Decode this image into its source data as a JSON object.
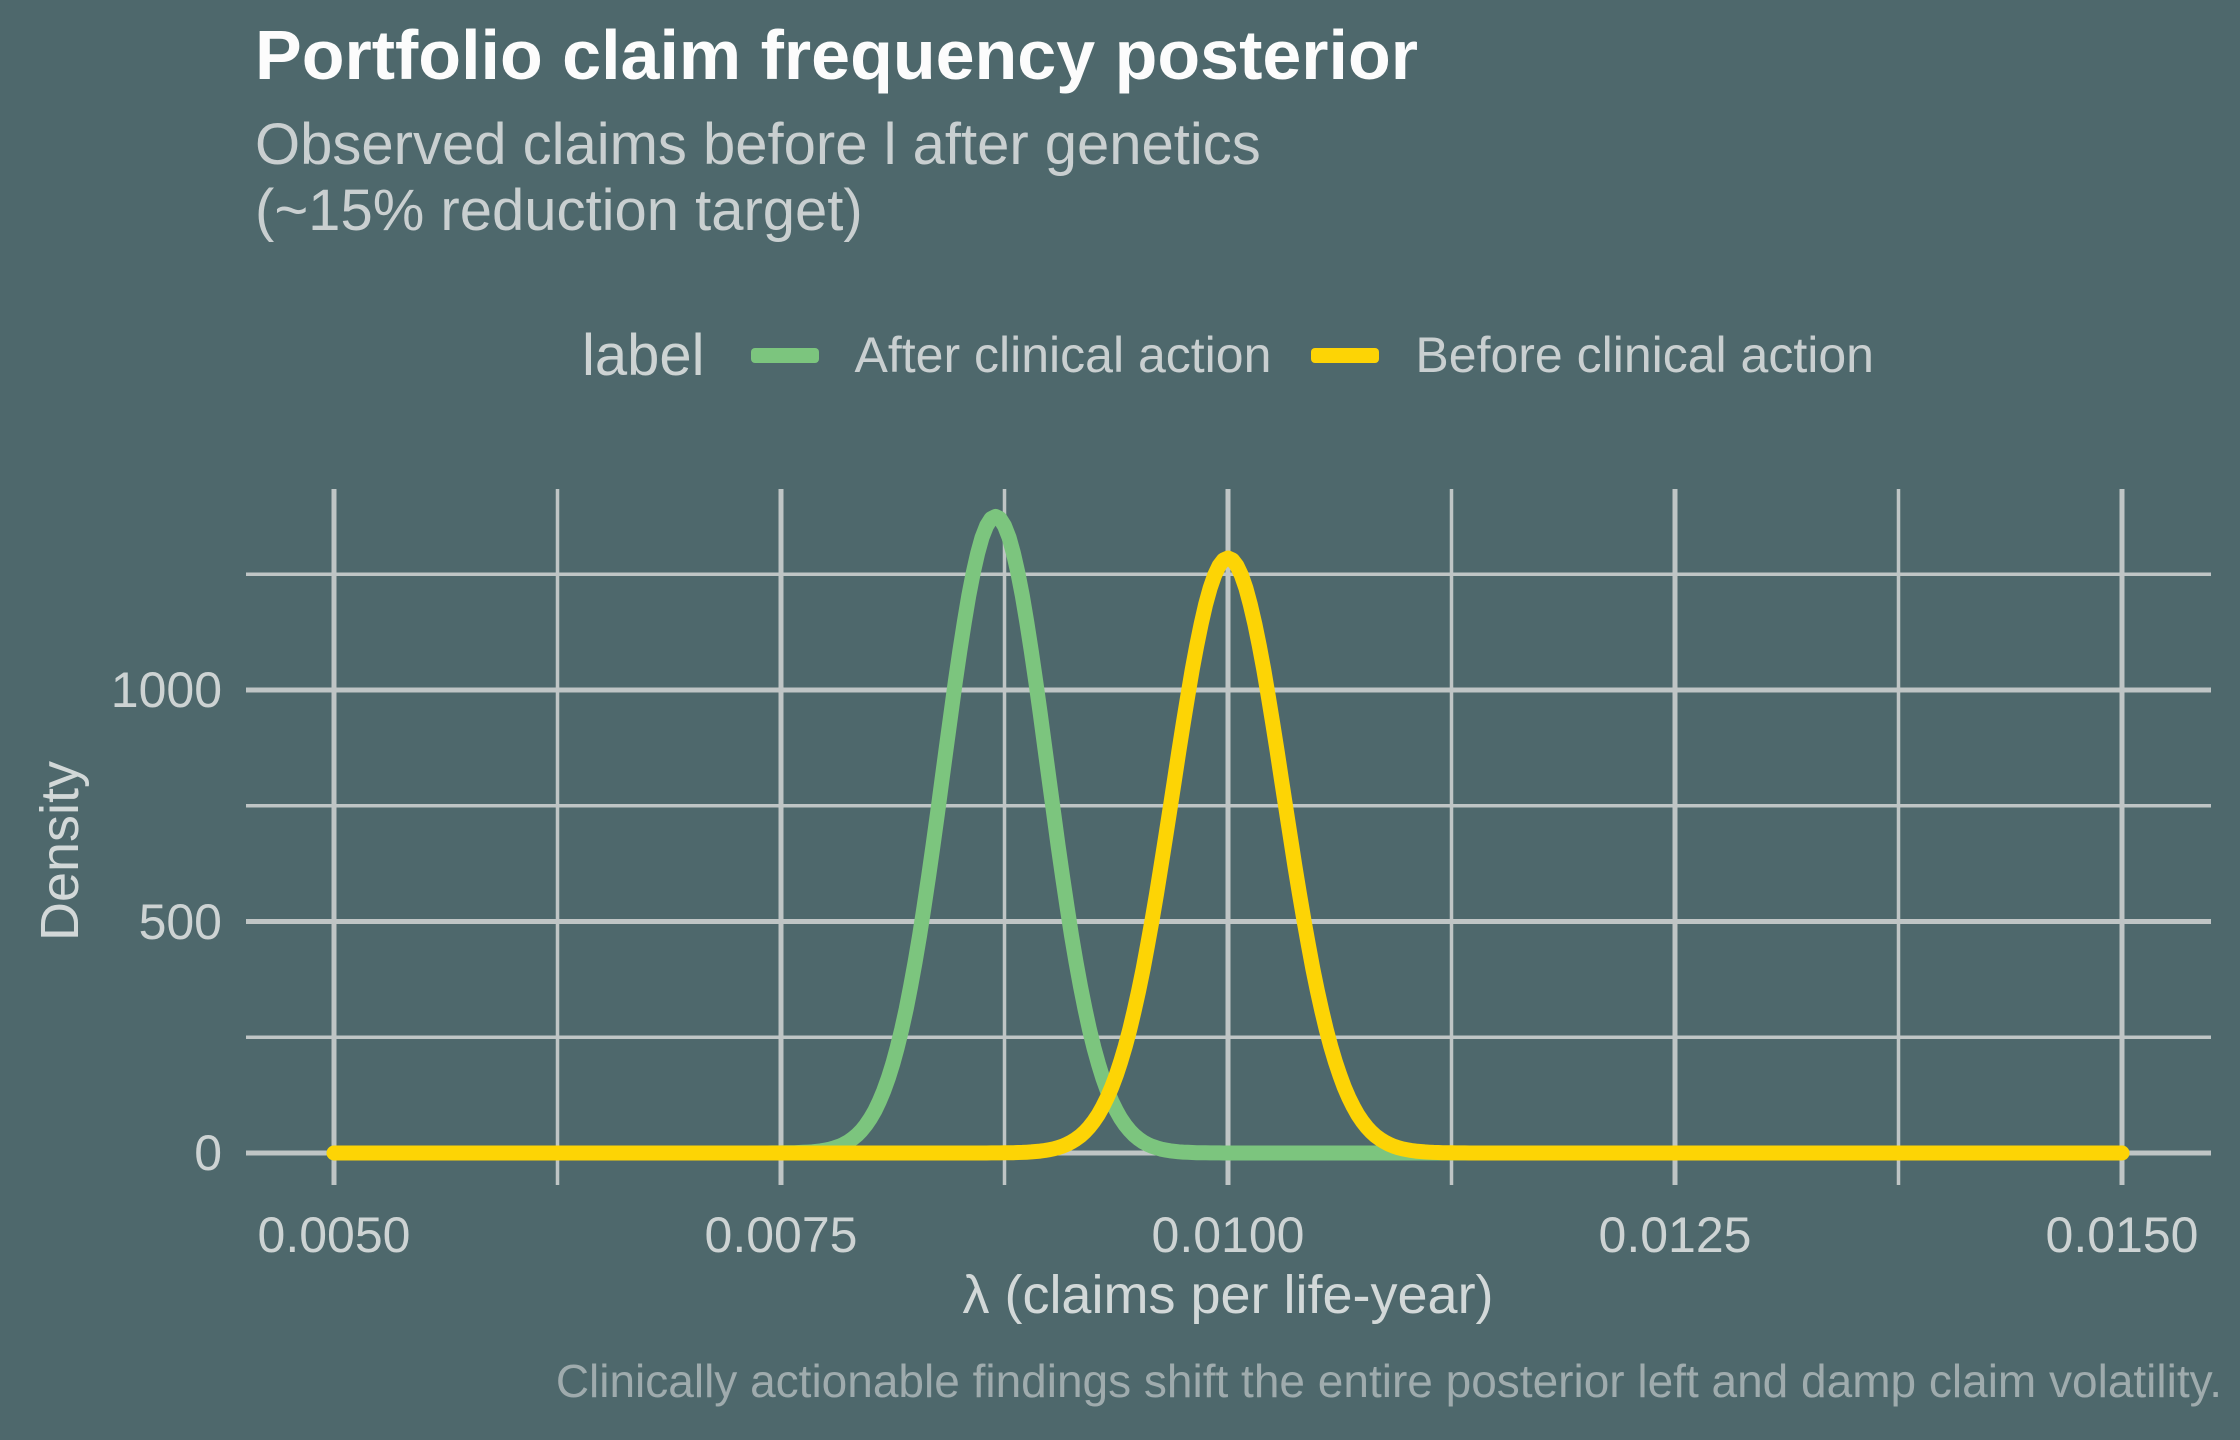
{
  "chart": {
    "title": "Portfolio claim frequency posterior",
    "subtitle": "Observed claims before l after genetics\n(~15% reduction target)",
    "caption": "Clinically actionable findings shift the entire posterior left and damp claim volatility.",
    "background_color": "#4e686c",
    "gridline_color": "#bfc5c5",
    "x_axis": {
      "label": "λ (claims per life-year)",
      "ticks": [
        "0.0050",
        "0.0075",
        "0.0100",
        "0.0125",
        "0.0150"
      ],
      "tick_values": [
        0.005,
        0.0075,
        0.01,
        0.0125,
        0.015
      ],
      "minor_tick_values": [
        0.00625,
        0.00875,
        0.01125,
        0.01375
      ]
    },
    "y_axis": {
      "label": "Density",
      "ticks": [
        "0",
        "500",
        "1000"
      ],
      "tick_values": [
        0,
        500,
        1000
      ],
      "minor_tick_values": [
        250,
        750,
        1250
      ]
    },
    "legend": {
      "title": "label",
      "items": [
        {
          "label": "After clinical action",
          "color": "#7cc57e"
        },
        {
          "label": "Before clinical action",
          "color": "#fdd405"
        }
      ]
    }
  },
  "chart_data": {
    "type": "line",
    "title": "Portfolio claim frequency posterior",
    "subtitle": "Observed claims before l after genetics (~15% reduction target)",
    "xlabel": "λ (claims per life-year)",
    "ylabel": "Density",
    "xlim": [
      0.005,
      0.015
    ],
    "ylim": [
      0,
      1438
    ],
    "x_ticks": [
      0.005,
      0.0075,
      0.01,
      0.0125,
      0.015
    ],
    "y_ticks": [
      0,
      500,
      1000
    ],
    "grid": "major+minor",
    "legend_position": "top",
    "series": [
      {
        "name": "After clinical action",
        "color": "#7cc57e",
        "shape": "gaussian",
        "mean": 0.0087,
        "sd": 0.00029,
        "peak_density": 1375
      },
      {
        "name": "Before clinical action",
        "color": "#fdd405",
        "shape": "gaussian",
        "mean": 0.01,
        "sd": 0.00031,
        "peak_density": 1285
      }
    ],
    "annotation": "Clinically actionable findings shift the entire posterior left and damp claim volatility."
  }
}
